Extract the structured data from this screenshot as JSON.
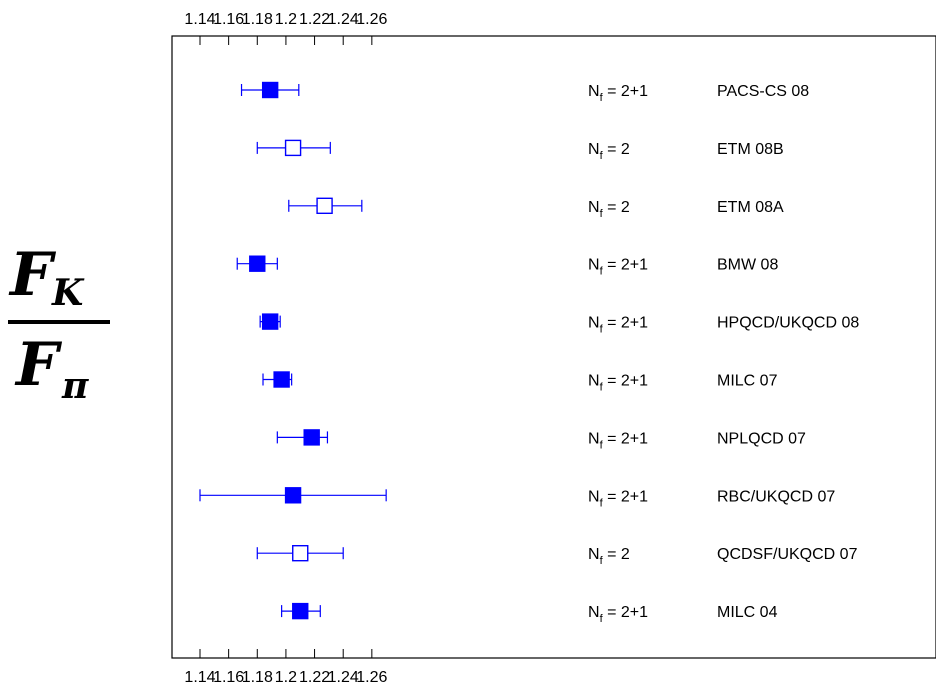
{
  "chart_data": {
    "type": "scatter",
    "title": "",
    "ylabel": {
      "numerator_letter": "F",
      "numerator_sub": "K",
      "denominator_letter": "F",
      "denominator_sub": "π"
    },
    "xlim": [
      1.14,
      1.27
    ],
    "xticks": [
      "1.14",
      "1.16",
      "1.18",
      "1.2",
      "1.22",
      "1.24",
      "1.26"
    ],
    "marker_color": "#0000ff",
    "grid": false,
    "points": [
      {
        "label": "PACS-CS 08",
        "nf_prefix": "N",
        "nf_sub": "f",
        "nf_value": " = 2+1",
        "value": 1.189,
        "err_low": 1.169,
        "err_high": 1.209,
        "filled": true
      },
      {
        "label": "ETM 08B",
        "nf_prefix": "N",
        "nf_sub": "f",
        "nf_value": " = 2",
        "value": 1.205,
        "err_low": 1.18,
        "err_high": 1.231,
        "filled": false
      },
      {
        "label": "ETM 08A",
        "nf_prefix": "N",
        "nf_sub": "f",
        "nf_value": " = 2",
        "value": 1.227,
        "err_low": 1.202,
        "err_high": 1.253,
        "filled": false
      },
      {
        "label": "BMW 08",
        "nf_prefix": "N",
        "nf_sub": "f",
        "nf_value": " = 2+1",
        "value": 1.18,
        "err_low": 1.166,
        "err_high": 1.194,
        "filled": true
      },
      {
        "label": "HPQCD/UKQCD 08",
        "nf_prefix": "N",
        "nf_sub": "f",
        "nf_value": " = 2+1",
        "value": 1.189,
        "err_low": 1.182,
        "err_high": 1.196,
        "filled": true
      },
      {
        "label": "MILC 07",
        "nf_prefix": "N",
        "nf_sub": "f",
        "nf_value": " = 2+1",
        "value": 1.197,
        "err_low": 1.184,
        "err_high": 1.204,
        "filled": true
      },
      {
        "label": "NPLQCD 07",
        "nf_prefix": "N",
        "nf_sub": "f",
        "nf_value": " = 2+1",
        "value": 1.218,
        "err_low": 1.194,
        "err_high": 1.229,
        "filled": true
      },
      {
        "label": "RBC/UKQCD 07",
        "nf_prefix": "N",
        "nf_sub": "f",
        "nf_value": " = 2+1",
        "value": 1.205,
        "err_low": 1.14,
        "err_high": 1.27,
        "filled": true
      },
      {
        "label": "QCDSF/UKQCD 07",
        "nf_prefix": "N",
        "nf_sub": "f",
        "nf_value": " = 2",
        "value": 1.21,
        "err_low": 1.18,
        "err_high": 1.24,
        "filled": false
      },
      {
        "label": "MILC 04",
        "nf_prefix": "N",
        "nf_sub": "f",
        "nf_value": " = 2+1",
        "value": 1.21,
        "err_low": 1.197,
        "err_high": 1.224,
        "filled": true
      }
    ]
  }
}
